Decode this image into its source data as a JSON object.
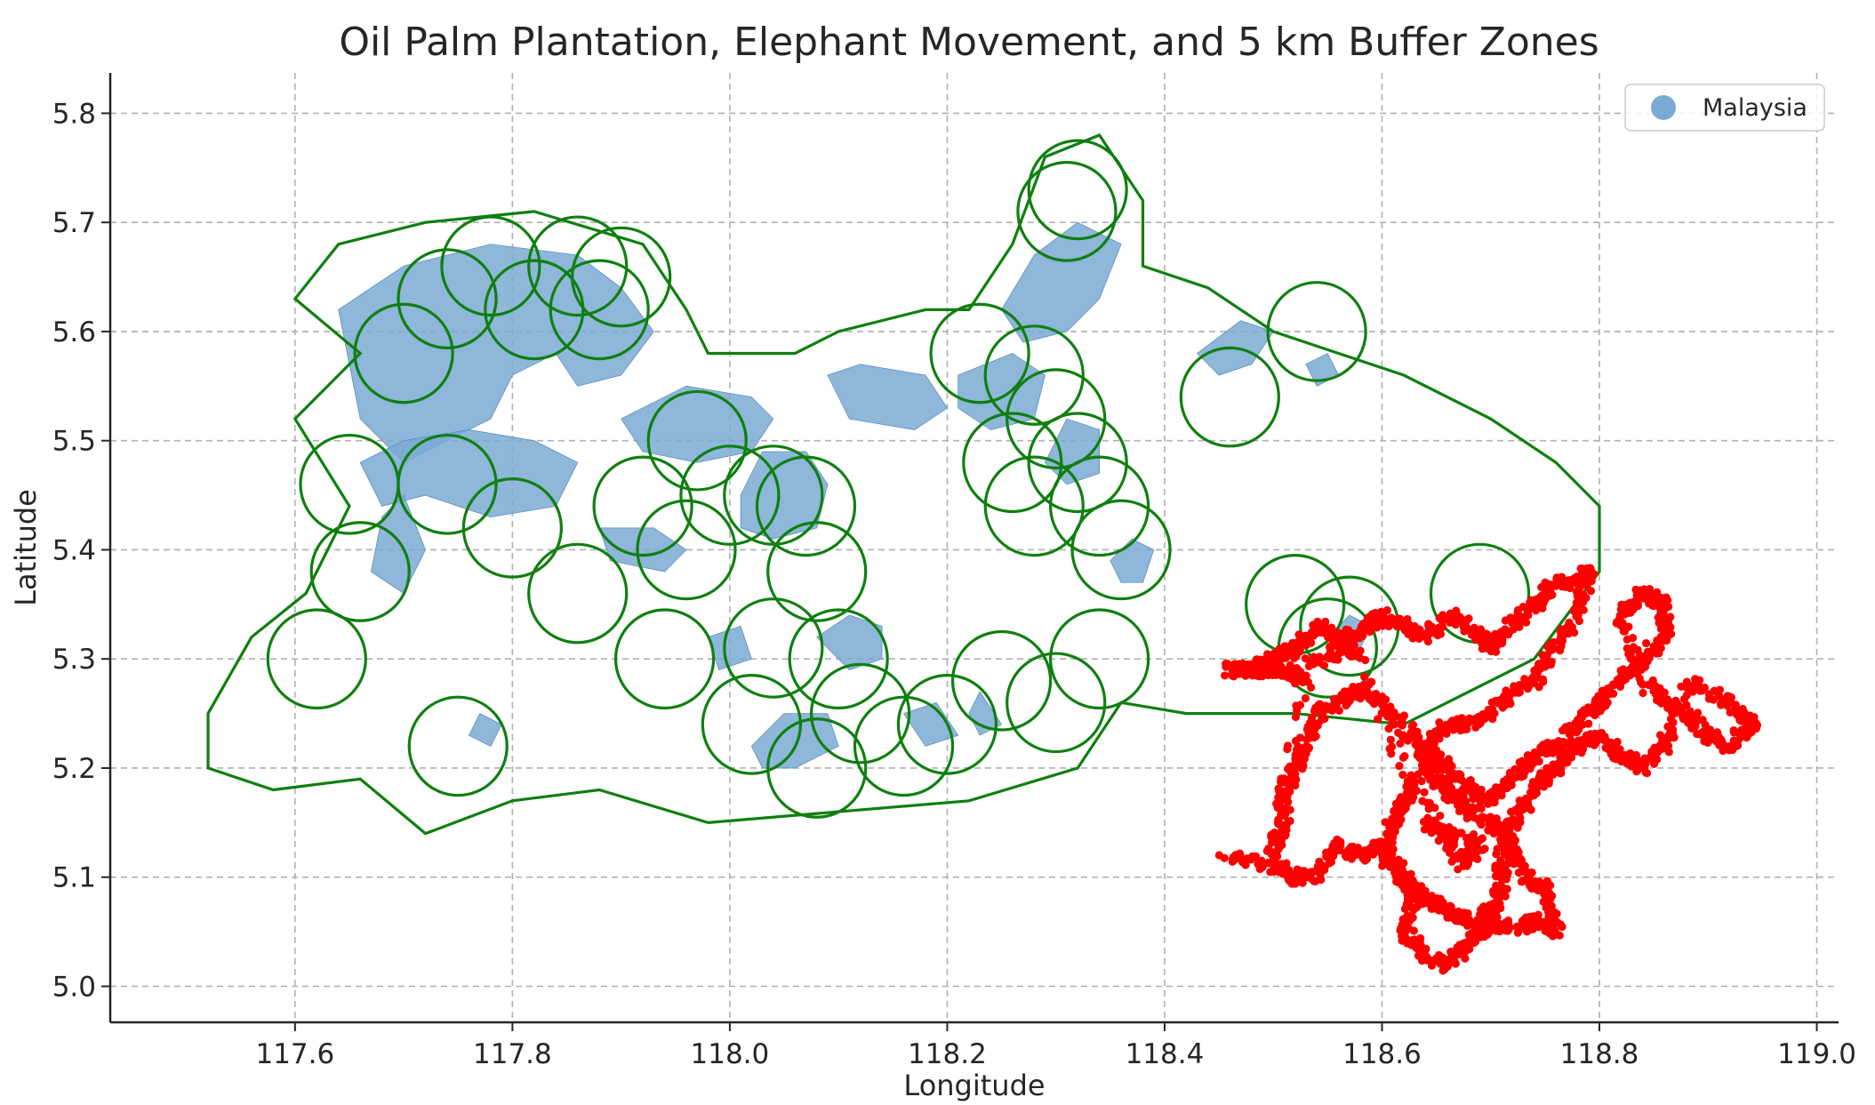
{
  "chart_data": {
    "type": "scatter",
    "title": "Oil Palm Plantation, Elephant Movement, and 5 km Buffer Zones",
    "xlabel": "Longitude",
    "ylabel": "Latitude",
    "xlim": [
      117.43,
      119.02
    ],
    "ylim": [
      4.967,
      5.837
    ],
    "x_ticks": [
      "117.6",
      "117.8",
      "118.0",
      "118.2",
      "118.4",
      "118.6",
      "118.8",
      "119.0"
    ],
    "y_ticks": [
      "5.0",
      "5.1",
      "5.2",
      "5.3",
      "5.4",
      "5.5",
      "5.6",
      "5.7",
      "5.8"
    ],
    "grid": true,
    "legend": {
      "placement": "top-right",
      "entries": [
        {
          "label": "Malaysia",
          "color": "#7aaad3"
        }
      ]
    },
    "colors": {
      "plantation": "#7aaad3",
      "buffer": "#0f7f0f",
      "elephant_points": "#ff0000"
    },
    "plantation_polygons": [
      [
        [
          117.64,
          5.62
        ],
        [
          117.7,
          5.66
        ],
        [
          117.78,
          5.68
        ],
        [
          117.86,
          5.67
        ],
        [
          117.9,
          5.64
        ],
        [
          117.93,
          5.6
        ],
        [
          117.9,
          5.56
        ],
        [
          117.86,
          5.55
        ],
        [
          117.84,
          5.58
        ],
        [
          117.8,
          5.56
        ],
        [
          117.78,
          5.52
        ],
        [
          117.74,
          5.5
        ],
        [
          117.7,
          5.48
        ],
        [
          117.66,
          5.52
        ],
        [
          117.65,
          5.57
        ]
      ],
      [
        [
          117.66,
          5.48
        ],
        [
          117.7,
          5.5
        ],
        [
          117.76,
          5.51
        ],
        [
          117.82,
          5.5
        ],
        [
          117.86,
          5.48
        ],
        [
          117.84,
          5.44
        ],
        [
          117.78,
          5.43
        ],
        [
          117.72,
          5.45
        ],
        [
          117.68,
          5.44
        ]
      ],
      [
        [
          117.7,
          5.45
        ],
        [
          117.72,
          5.4
        ],
        [
          117.7,
          5.36
        ],
        [
          117.67,
          5.38
        ],
        [
          117.68,
          5.43
        ]
      ],
      [
        [
          117.78,
          5.22
        ],
        [
          117.79,
          5.24
        ],
        [
          117.77,
          5.25
        ],
        [
          117.76,
          5.23
        ]
      ],
      [
        [
          117.9,
          5.52
        ],
        [
          117.96,
          5.55
        ],
        [
          118.02,
          5.54
        ],
        [
          118.04,
          5.52
        ],
        [
          118.02,
          5.49
        ],
        [
          117.97,
          5.48
        ],
        [
          117.92,
          5.49
        ]
      ],
      [
        [
          118.01,
          5.45
        ],
        [
          118.03,
          5.49
        ],
        [
          118.07,
          5.49
        ],
        [
          118.09,
          5.46
        ],
        [
          118.08,
          5.42
        ],
        [
          118.04,
          5.41
        ],
        [
          118.01,
          5.42
        ]
      ],
      [
        [
          117.88,
          5.42
        ],
        [
          117.93,
          5.42
        ],
        [
          117.96,
          5.4
        ],
        [
          117.94,
          5.38
        ],
        [
          117.89,
          5.39
        ]
      ],
      [
        [
          118.09,
          5.56
        ],
        [
          118.12,
          5.57
        ],
        [
          118.18,
          5.56
        ],
        [
          118.2,
          5.53
        ],
        [
          118.17,
          5.51
        ],
        [
          118.11,
          5.52
        ]
      ],
      [
        [
          118.21,
          5.56
        ],
        [
          118.26,
          5.58
        ],
        [
          118.29,
          5.56
        ],
        [
          118.28,
          5.52
        ],
        [
          118.24,
          5.51
        ],
        [
          118.21,
          5.53
        ]
      ],
      [
        [
          118.25,
          5.62
        ],
        [
          118.28,
          5.67
        ],
        [
          118.32,
          5.7
        ],
        [
          118.36,
          5.68
        ],
        [
          118.34,
          5.63
        ],
        [
          118.31,
          5.6
        ],
        [
          118.27,
          5.59
        ]
      ],
      [
        [
          118.29,
          5.48
        ],
        [
          118.31,
          5.52
        ],
        [
          118.34,
          5.51
        ],
        [
          118.34,
          5.47
        ],
        [
          118.31,
          5.46
        ]
      ],
      [
        [
          118.08,
          5.32
        ],
        [
          118.11,
          5.34
        ],
        [
          118.14,
          5.33
        ],
        [
          118.14,
          5.3
        ],
        [
          118.11,
          5.29
        ]
      ],
      [
        [
          117.98,
          5.32
        ],
        [
          118.01,
          5.33
        ],
        [
          118.02,
          5.3
        ],
        [
          117.99,
          5.29
        ]
      ],
      [
        [
          118.02,
          5.22
        ],
        [
          118.05,
          5.25
        ],
        [
          118.09,
          5.25
        ],
        [
          118.1,
          5.22
        ],
        [
          118.06,
          5.2
        ],
        [
          118.03,
          5.2
        ]
      ],
      [
        [
          118.16,
          5.25
        ],
        [
          118.19,
          5.26
        ],
        [
          118.21,
          5.23
        ],
        [
          118.18,
          5.22
        ]
      ],
      [
        [
          118.22,
          5.25
        ],
        [
          118.23,
          5.27
        ],
        [
          118.25,
          5.24
        ],
        [
          118.23,
          5.23
        ]
      ],
      [
        [
          118.35,
          5.39
        ],
        [
          118.37,
          5.41
        ],
        [
          118.39,
          5.4
        ],
        [
          118.38,
          5.37
        ],
        [
          118.36,
          5.37
        ]
      ],
      [
        [
          118.43,
          5.58
        ],
        [
          118.47,
          5.61
        ],
        [
          118.5,
          5.6
        ],
        [
          118.48,
          5.57
        ],
        [
          118.45,
          5.56
        ]
      ],
      [
        [
          118.55,
          5.32
        ],
        [
          118.57,
          5.34
        ],
        [
          118.59,
          5.33
        ],
        [
          118.58,
          5.31
        ]
      ],
      [
        [
          118.53,
          5.57
        ],
        [
          118.55,
          5.58
        ],
        [
          118.56,
          5.56
        ],
        [
          118.54,
          5.55
        ]
      ]
    ],
    "buffer_circles": [
      [
        117.62,
        5.3
      ],
      [
        117.75,
        5.22
      ],
      [
        117.65,
        5.46
      ],
      [
        117.7,
        5.58
      ],
      [
        117.74,
        5.63
      ],
      [
        117.78,
        5.66
      ],
      [
        117.82,
        5.62
      ],
      [
        117.86,
        5.66
      ],
      [
        117.88,
        5.62
      ],
      [
        117.9,
        5.65
      ],
      [
        117.66,
        5.38
      ],
      [
        117.74,
        5.46
      ],
      [
        117.8,
        5.42
      ],
      [
        117.86,
        5.36
      ],
      [
        117.92,
        5.44
      ],
      [
        117.96,
        5.4
      ],
      [
        117.97,
        5.5
      ],
      [
        118.0,
        5.45
      ],
      [
        118.04,
        5.45
      ],
      [
        118.07,
        5.44
      ],
      [
        118.08,
        5.38
      ],
      [
        118.04,
        5.31
      ],
      [
        118.1,
        5.3
      ],
      [
        118.12,
        5.25
      ],
      [
        118.08,
        5.2
      ],
      [
        118.16,
        5.22
      ],
      [
        118.2,
        5.24
      ],
      [
        118.25,
        5.28
      ],
      [
        118.3,
        5.26
      ],
      [
        118.34,
        5.3
      ],
      [
        118.02,
        5.24
      ],
      [
        117.94,
        5.3
      ],
      [
        118.23,
        5.58
      ],
      [
        118.28,
        5.56
      ],
      [
        118.3,
        5.52
      ],
      [
        118.32,
        5.48
      ],
      [
        118.28,
        5.44
      ],
      [
        118.26,
        5.48
      ],
      [
        118.34,
        5.44
      ],
      [
        118.36,
        5.4
      ],
      [
        118.31,
        5.71
      ],
      [
        118.32,
        5.73
      ],
      [
        118.46,
        5.54
      ],
      [
        118.54,
        5.6
      ],
      [
        118.52,
        5.35
      ],
      [
        118.55,
        5.31
      ],
      [
        118.57,
        5.33
      ],
      [
        118.69,
        5.36
      ]
    ],
    "buffer_outline": [
      [
        117.52,
        5.25
      ],
      [
        117.56,
        5.32
      ],
      [
        117.61,
        5.36
      ],
      [
        117.65,
        5.44
      ],
      [
        117.6,
        5.52
      ],
      [
        117.66,
        5.58
      ],
      [
        117.6,
        5.63
      ],
      [
        117.64,
        5.68
      ],
      [
        117.72,
        5.7
      ],
      [
        117.82,
        5.71
      ],
      [
        117.92,
        5.68
      ],
      [
        117.96,
        5.62
      ],
      [
        117.98,
        5.58
      ],
      [
        118.06,
        5.58
      ],
      [
        118.1,
        5.6
      ],
      [
        118.18,
        5.62
      ],
      [
        118.22,
        5.62
      ],
      [
        118.26,
        5.68
      ],
      [
        118.29,
        5.76
      ],
      [
        118.34,
        5.78
      ],
      [
        118.38,
        5.72
      ],
      [
        118.38,
        5.66
      ],
      [
        118.44,
        5.64
      ],
      [
        118.5,
        5.6
      ],
      [
        118.56,
        5.58
      ],
      [
        118.62,
        5.56
      ],
      [
        118.7,
        5.52
      ],
      [
        118.76,
        5.48
      ],
      [
        118.8,
        5.44
      ],
      [
        118.8,
        5.38
      ],
      [
        118.74,
        5.3
      ],
      [
        118.62,
        5.24
      ],
      [
        118.52,
        5.25
      ],
      [
        118.42,
        5.25
      ],
      [
        118.36,
        5.26
      ],
      [
        118.32,
        5.2
      ],
      [
        118.22,
        5.17
      ],
      [
        118.1,
        5.16
      ],
      [
        117.98,
        5.15
      ],
      [
        117.88,
        5.18
      ],
      [
        117.8,
        5.17
      ],
      [
        117.72,
        5.14
      ],
      [
        117.66,
        5.19
      ],
      [
        117.58,
        5.18
      ],
      [
        117.52,
        5.2
      ]
    ],
    "elephant_path": [
      [
        118.45,
        5.12
      ],
      [
        118.5,
        5.11
      ],
      [
        118.52,
        5.1
      ],
      [
        118.54,
        5.1
      ],
      [
        118.56,
        5.13
      ],
      [
        118.58,
        5.12
      ],
      [
        118.6,
        5.13
      ],
      [
        118.62,
        5.1
      ],
      [
        118.63,
        5.08
      ],
      [
        118.62,
        5.05
      ],
      [
        118.64,
        5.03
      ],
      [
        118.66,
        5.02
      ],
      [
        118.68,
        5.04
      ],
      [
        118.7,
        5.06
      ],
      [
        118.72,
        5.05
      ],
      [
        118.74,
        5.06
      ],
      [
        118.76,
        5.05
      ],
      [
        118.75,
        5.09
      ],
      [
        118.73,
        5.1
      ],
      [
        118.72,
        5.13
      ],
      [
        118.7,
        5.15
      ],
      [
        118.68,
        5.16
      ],
      [
        118.66,
        5.18
      ],
      [
        118.65,
        5.19
      ],
      [
        118.64,
        5.21
      ],
      [
        118.62,
        5.24
      ],
      [
        118.6,
        5.26
      ],
      [
        118.58,
        5.27
      ],
      [
        118.56,
        5.26
      ],
      [
        118.54,
        5.25
      ],
      [
        118.53,
        5.22
      ],
      [
        118.52,
        5.2
      ],
      [
        118.51,
        5.18
      ],
      [
        118.51,
        5.15
      ],
      [
        118.5,
        5.12
      ],
      [
        118.53,
        5.28
      ],
      [
        118.51,
        5.29
      ],
      [
        118.49,
        5.29
      ],
      [
        118.47,
        5.29
      ],
      [
        118.46,
        5.29
      ],
      [
        118.55,
        5.3
      ],
      [
        118.57,
        5.32
      ],
      [
        118.59,
        5.33
      ],
      [
        118.6,
        5.34
      ],
      [
        118.62,
        5.33
      ],
      [
        118.64,
        5.32
      ],
      [
        118.66,
        5.34
      ],
      [
        118.68,
        5.33
      ],
      [
        118.7,
        5.31
      ],
      [
        118.72,
        5.33
      ],
      [
        118.74,
        5.35
      ],
      [
        118.76,
        5.37
      ],
      [
        118.78,
        5.37
      ],
      [
        118.79,
        5.38
      ],
      [
        118.78,
        5.34
      ],
      [
        118.76,
        5.31
      ],
      [
        118.74,
        5.28
      ],
      [
        118.72,
        5.27
      ],
      [
        118.7,
        5.25
      ],
      [
        118.68,
        5.24
      ],
      [
        118.66,
        5.24
      ],
      [
        118.64,
        5.22
      ],
      [
        118.66,
        5.2
      ],
      [
        118.68,
        5.18
      ],
      [
        118.7,
        5.17
      ],
      [
        118.72,
        5.19
      ],
      [
        118.74,
        5.21
      ],
      [
        118.76,
        5.22
      ],
      [
        118.78,
        5.24
      ],
      [
        118.8,
        5.26
      ],
      [
        118.82,
        5.28
      ],
      [
        118.84,
        5.3
      ],
      [
        118.86,
        5.32
      ],
      [
        118.86,
        5.35
      ],
      [
        118.84,
        5.36
      ],
      [
        118.82,
        5.34
      ],
      [
        118.84,
        5.28
      ],
      [
        118.86,
        5.26
      ],
      [
        118.88,
        5.25
      ],
      [
        118.9,
        5.23
      ],
      [
        118.92,
        5.22
      ],
      [
        118.94,
        5.24
      ],
      [
        118.92,
        5.26
      ],
      [
        118.88,
        5.28
      ],
      [
        118.86,
        5.22
      ],
      [
        118.84,
        5.2
      ],
      [
        118.82,
        5.21
      ],
      [
        118.8,
        5.23
      ],
      [
        118.78,
        5.22
      ],
      [
        118.76,
        5.2
      ],
      [
        118.74,
        5.18
      ],
      [
        118.72,
        5.15
      ],
      [
        118.71,
        5.12
      ],
      [
        118.71,
        5.09
      ],
      [
        118.7,
        5.07
      ],
      [
        118.68,
        5.06
      ],
      [
        118.66,
        5.07
      ],
      [
        118.64,
        5.08
      ],
      [
        118.62,
        5.1
      ],
      [
        118.6,
        5.12
      ],
      [
        118.61,
        5.15
      ],
      [
        118.62,
        5.17
      ],
      [
        118.63,
        5.19
      ],
      [
        118.67,
        5.11
      ],
      [
        118.69,
        5.13
      ],
      [
        118.66,
        5.14
      ],
      [
        118.64,
        5.15
      ],
      [
        118.58,
        5.3
      ],
      [
        118.56,
        5.32
      ],
      [
        118.54,
        5.33
      ],
      [
        118.52,
        5.31
      ],
      [
        118.5,
        5.3
      ],
      [
        118.48,
        5.29
      ]
    ]
  }
}
